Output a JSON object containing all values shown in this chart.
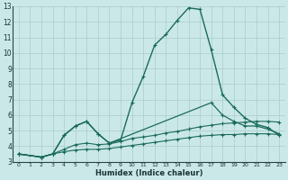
{
  "xlabel": "Humidex (Indice chaleur)",
  "bg_color": "#cbe8e8",
  "grid_color": "#a8cccc",
  "line_color": "#1a6b5a",
  "xlim": [
    -0.5,
    23.5
  ],
  "ylim": [
    3,
    13
  ],
  "xticks": [
    0,
    1,
    2,
    3,
    4,
    5,
    6,
    7,
    8,
    9,
    10,
    11,
    12,
    13,
    14,
    15,
    16,
    17,
    18,
    19,
    20,
    21,
    22,
    23
  ],
  "yticks": [
    3,
    4,
    5,
    6,
    7,
    8,
    9,
    10,
    11,
    12,
    13
  ],
  "line1": {
    "x": [
      0,
      2,
      3,
      4,
      5,
      6,
      7,
      8,
      9,
      10,
      11,
      12,
      13,
      14,
      15,
      16,
      17,
      18,
      19,
      20,
      21,
      22,
      23
    ],
    "y": [
      3.5,
      3.3,
      3.5,
      4.7,
      5.3,
      5.6,
      4.8,
      4.2,
      4.4,
      6.8,
      8.5,
      10.5,
      11.2,
      12.1,
      12.9,
      12.8,
      10.2,
      7.3,
      6.5,
      5.8,
      5.4,
      5.2,
      4.7
    ]
  },
  "line2": {
    "x": [
      0,
      2,
      3,
      4,
      5,
      6,
      7,
      8,
      17,
      18,
      19,
      20,
      21,
      22,
      23
    ],
    "y": [
      3.5,
      3.3,
      3.5,
      4.7,
      5.3,
      5.6,
      4.8,
      4.2,
      6.8,
      6.0,
      5.6,
      5.3,
      5.3,
      5.1,
      4.8
    ]
  },
  "line3": {
    "x": [
      0,
      2,
      3,
      4,
      5,
      6,
      7,
      8,
      9,
      10,
      11,
      12,
      13,
      14,
      15,
      16,
      17,
      18,
      19,
      20,
      21,
      22,
      23
    ],
    "y": [
      3.5,
      3.3,
      3.5,
      3.8,
      4.1,
      4.2,
      4.1,
      4.15,
      4.3,
      4.5,
      4.6,
      4.7,
      4.85,
      4.95,
      5.1,
      5.25,
      5.35,
      5.45,
      5.5,
      5.55,
      5.6,
      5.6,
      5.55
    ]
  },
  "line4": {
    "x": [
      0,
      2,
      3,
      4,
      5,
      6,
      7,
      8,
      9,
      10,
      11,
      12,
      13,
      14,
      15,
      16,
      17,
      18,
      19,
      20,
      21,
      22,
      23
    ],
    "y": [
      3.5,
      3.3,
      3.5,
      3.65,
      3.75,
      3.8,
      3.8,
      3.85,
      3.95,
      4.05,
      4.15,
      4.25,
      4.35,
      4.45,
      4.55,
      4.65,
      4.7,
      4.75,
      4.75,
      4.8,
      4.8,
      4.8,
      4.75
    ]
  }
}
